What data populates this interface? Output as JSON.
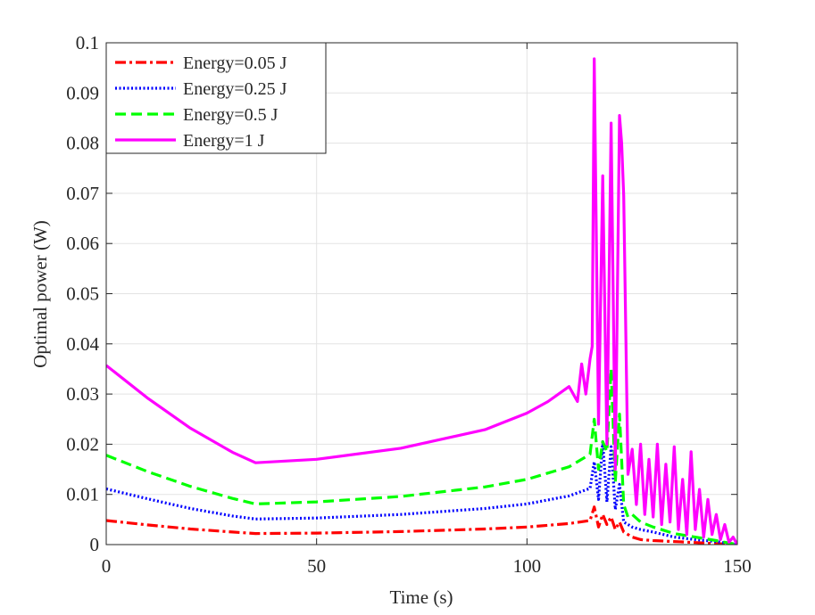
{
  "chart_data": {
    "type": "line",
    "title": "",
    "xlabel": "Time (s)",
    "ylabel": "Optimal power (W)",
    "xlim": [
      0,
      150
    ],
    "ylim": [
      0,
      0.1
    ],
    "grid": true,
    "legend_position": "top-left",
    "x_ticks": [
      0,
      50,
      100,
      150
    ],
    "x_tick_labels": [
      "0",
      "50",
      "100",
      "150"
    ],
    "y_ticks": [
      0,
      0.01,
      0.02,
      0.03,
      0.04,
      0.05,
      0.06,
      0.07,
      0.08,
      0.09,
      0.1
    ],
    "y_tick_labels": [
      "0",
      "0.01",
      "0.02",
      "0.03",
      "0.04",
      "0.05",
      "0.06",
      "0.07",
      "0.08",
      "0.09",
      "0.1"
    ],
    "series": [
      {
        "name": "Energy=0.05 J",
        "color": "#ff0000",
        "style": "dash-dot",
        "x": [
          0,
          10,
          20,
          30,
          35.5,
          50,
          70,
          90,
          100,
          110,
          115,
          116,
          117,
          118,
          119,
          120,
          121,
          122,
          123,
          124,
          125,
          127,
          130,
          135,
          140,
          145,
          150
        ],
        "y": [
          0.0048,
          0.0039,
          0.0031,
          0.0025,
          0.0022,
          0.0023,
          0.0026,
          0.0031,
          0.0035,
          0.0042,
          0.0048,
          0.0075,
          0.0035,
          0.006,
          0.004,
          0.0055,
          0.003,
          0.0045,
          0.0025,
          0.002,
          0.0015,
          0.001,
          0.0008,
          0.0006,
          0.0004,
          0.0002,
          0.0
        ]
      },
      {
        "name": "Energy=0.25 J",
        "color": "#0000ff",
        "style": "dotted",
        "x": [
          0,
          10,
          20,
          30,
          35.5,
          50,
          70,
          90,
          100,
          110,
          115,
          116,
          117,
          118,
          119,
          120,
          121,
          122,
          123,
          124,
          125,
          127,
          130,
          135,
          140,
          145,
          150
        ],
        "y": [
          0.0111,
          0.0091,
          0.0072,
          0.0057,
          0.0051,
          0.0053,
          0.006,
          0.0072,
          0.0081,
          0.0097,
          0.0112,
          0.0165,
          0.009,
          0.0205,
          0.0085,
          0.0195,
          0.007,
          0.012,
          0.0045,
          0.004,
          0.0035,
          0.003,
          0.0025,
          0.0015,
          0.001,
          0.0006,
          0.0
        ]
      },
      {
        "name": "Energy=0.5 J",
        "color": "#00ff00",
        "style": "dashed",
        "x": [
          0,
          10,
          20,
          30,
          35.5,
          50,
          70,
          90,
          100,
          110,
          115,
          116,
          117,
          118,
          119,
          120,
          121,
          122,
          123,
          124,
          125,
          127,
          130,
          135,
          140,
          145,
          150
        ],
        "y": [
          0.0178,
          0.0145,
          0.0116,
          0.0092,
          0.0081,
          0.0085,
          0.0096,
          0.0115,
          0.013,
          0.0155,
          0.018,
          0.025,
          0.015,
          0.0205,
          0.0185,
          0.035,
          0.0125,
          0.026,
          0.008,
          0.0055,
          0.006,
          0.0045,
          0.0035,
          0.0022,
          0.0015,
          0.0008,
          0.0
        ]
      },
      {
        "name": "Energy=1 J",
        "color": "#ff00ff",
        "style": "solid",
        "x": [
          0,
          10,
          20,
          30,
          35.5,
          50,
          70,
          90,
          100,
          105,
          110,
          112,
          113,
          114,
          115,
          115.5,
          116,
          117,
          118,
          119,
          120,
          121,
          122,
          122.5,
          123,
          124,
          125,
          126,
          127,
          128,
          129,
          130,
          131,
          132,
          133,
          134,
          135,
          136,
          137,
          138,
          139,
          140,
          141,
          142,
          143,
          144,
          145,
          146,
          147,
          148,
          149,
          150
        ],
        "y": [
          0.0357,
          0.0291,
          0.0232,
          0.0184,
          0.0163,
          0.017,
          0.0192,
          0.0229,
          0.0262,
          0.0285,
          0.0315,
          0.0285,
          0.036,
          0.03,
          0.037,
          0.0395,
          0.0968,
          0.024,
          0.0735,
          0.02,
          0.084,
          0.015,
          0.0855,
          0.08,
          0.0695,
          0.014,
          0.019,
          0.008,
          0.02,
          0.006,
          0.017,
          0.0055,
          0.02,
          0.004,
          0.016,
          0.0045,
          0.0195,
          0.003,
          0.013,
          0.002,
          0.0185,
          0.003,
          0.011,
          0.0015,
          0.009,
          0.002,
          0.006,
          0.001,
          0.004,
          0.0005,
          0.0015,
          0.0
        ]
      }
    ]
  }
}
